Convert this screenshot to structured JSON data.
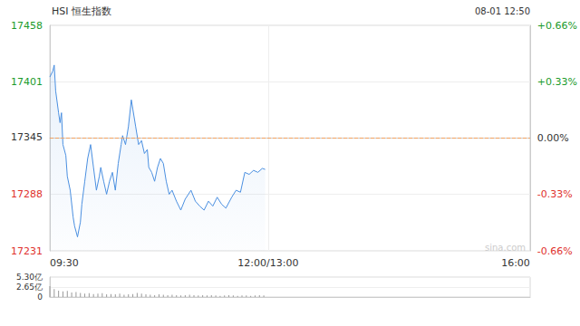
{
  "chart_data": [
    {
      "type": "line",
      "title": "HSI 恒生指数",
      "subtitle": "08-01 12:50",
      "annotations": [
        "sina.com"
      ],
      "x": [
        0,
        2,
        3,
        4,
        6,
        7,
        8,
        9,
        11,
        12,
        14,
        16,
        17,
        19,
        21,
        22,
        24,
        26,
        28,
        30,
        32,
        34,
        35,
        37,
        39,
        41,
        43,
        45,
        47,
        49,
        50,
        52,
        54,
        56,
        57,
        59,
        61,
        63,
        65,
        67,
        68,
        70,
        72,
        74,
        76,
        78,
        80,
        82,
        84,
        87,
        90,
        93,
        97,
        100,
        103,
        106,
        109,
        112,
        115,
        118,
        121,
        125,
        128,
        131,
        134,
        137,
        140,
        143,
        146,
        148
      ],
      "values": [
        17406,
        17412,
        17418,
        17392,
        17370,
        17360,
        17370,
        17338,
        17327,
        17306,
        17292,
        17265,
        17256,
        17245,
        17260,
        17278,
        17301,
        17324,
        17338,
        17315,
        17292,
        17306,
        17315,
        17301,
        17288,
        17301,
        17310,
        17292,
        17319,
        17338,
        17347,
        17338,
        17356,
        17383,
        17374,
        17356,
        17338,
        17342,
        17329,
        17333,
        17315,
        17310,
        17301,
        17315,
        17324,
        17319,
        17301,
        17288,
        17292,
        17281,
        17272,
        17283,
        17292,
        17281,
        17276,
        17272,
        17281,
        17276,
        17285,
        17278,
        17274,
        17285,
        17292,
        17290,
        17310,
        17308,
        17312,
        17310,
        17314,
        17313
      ],
      "color": "#4a8fe0",
      "reference_line": 17345,
      "xlim": [
        0,
        330
      ],
      "xticks": [
        {
          "value": 0,
          "label": "09:30"
        },
        {
          "value": 150,
          "label": "12:00/13:00"
        },
        {
          "value": 330,
          "label": "16:00"
        }
      ],
      "ylim": [
        17231,
        17458
      ],
      "yticks": [
        17231,
        17288,
        17345,
        17401,
        17458
      ],
      "y2lim": [
        -0.66,
        0.66
      ],
      "y2ticks": [
        {
          "value": -0.66,
          "label": "-0.66%"
        },
        {
          "value": -0.33,
          "label": "-0.33%"
        },
        {
          "value": 0,
          "label": "0.00%"
        },
        {
          "value": 0.33,
          "label": "+0.33%"
        },
        {
          "value": 0.66,
          "label": "+0.66%"
        }
      ],
      "grid": true
    },
    {
      "type": "bar",
      "x": [
        0,
        3,
        6,
        9,
        12,
        15,
        18,
        21,
        24,
        27,
        30,
        33,
        36,
        39,
        42,
        45,
        48,
        51,
        54,
        57,
        60,
        63,
        66,
        69,
        72,
        75,
        78,
        81,
        84,
        87,
        90,
        93,
        96,
        99,
        102,
        105,
        108,
        111,
        114,
        117,
        120,
        123,
        126,
        129,
        132,
        135,
        138,
        141,
        144,
        147
      ],
      "values": [
        2.9,
        2.1,
        1.7,
        1.5,
        1.6,
        1.2,
        1.3,
        1.1,
        0.9,
        1.0,
        0.8,
        0.9,
        1.0,
        0.7,
        0.8,
        0.7,
        0.9,
        0.6,
        0.7,
        0.8,
        1.1,
        0.9,
        0.7,
        0.6,
        0.5,
        0.7,
        0.6,
        0.5,
        0.6,
        0.5,
        0.4,
        0.5,
        0.6,
        0.5,
        0.4,
        0.5,
        0.4,
        0.5,
        0.4,
        0.3,
        0.4,
        0.5,
        0.4,
        0.3,
        0.4,
        0.4,
        0.3,
        0.4,
        0.5,
        0.4
      ],
      "color": "#9a9a9a",
      "xlim": [
        0,
        330
      ],
      "ylim": [
        0,
        5.3
      ],
      "yticks": [
        0,
        {
          "value": 2.65,
          "label": "2.65亿"
        },
        {
          "value": 5.3,
          "label": "5.30亿"
        }
      ],
      "tick_labels": "y",
      "grid": true
    }
  ]
}
